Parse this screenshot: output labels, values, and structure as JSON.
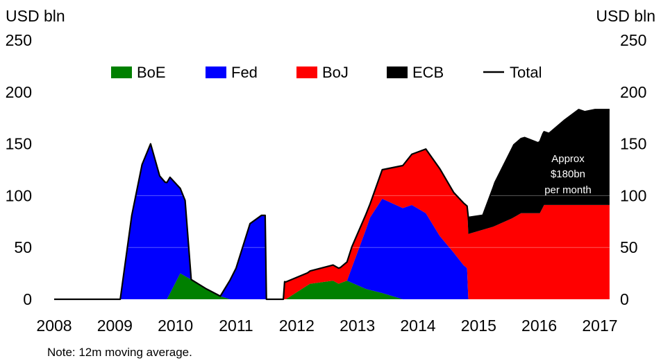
{
  "chart_data": {
    "type": "area",
    "stacked": true,
    "title": "",
    "ylabel_left": "USD bln",
    "ylabel_right": "USD bln",
    "ylim": [
      0,
      250
    ],
    "xlim": [
      2008,
      2017.16
    ],
    "y_ticks": [
      "0",
      "50",
      "100",
      "150",
      "200",
      "250"
    ],
    "x_ticks": [
      "2008",
      "2009",
      "2010",
      "2011",
      "2012",
      "2013",
      "2014",
      "2015",
      "2016",
      "2017"
    ],
    "legend_position": "top",
    "series": [
      {
        "name": "BoE",
        "color": "#008000",
        "points": [
          [
            2009.86,
            0
          ],
          [
            2010.08,
            25
          ],
          [
            2010.26,
            19
          ],
          [
            2010.51,
            10
          ],
          [
            2010.74,
            3
          ],
          [
            2010.9,
            0
          ],
          [
            2011.82,
            0
          ],
          [
            2012.22,
            15
          ],
          [
            2012.6,
            18
          ],
          [
            2012.69,
            15
          ],
          [
            2012.83,
            18
          ],
          [
            2013.14,
            10
          ],
          [
            2013.41,
            6
          ],
          [
            2013.75,
            0
          ]
        ]
      },
      {
        "name": "Fed",
        "color": "#0000ff",
        "points": [
          [
            2009.09,
            0
          ],
          [
            2009.28,
            81
          ],
          [
            2009.45,
            130
          ],
          [
            2009.59,
            150
          ],
          [
            2009.74,
            119
          ],
          [
            2009.83,
            113
          ],
          [
            2009.91,
            112
          ],
          [
            2010.08,
            82
          ],
          [
            2010.16,
            73
          ],
          [
            2010.26,
            0
          ],
          [
            2010.74,
            0
          ],
          [
            2011.0,
            30
          ],
          [
            2011.23,
            73
          ],
          [
            2011.42,
            81
          ],
          [
            2011.48,
            81
          ],
          [
            2011.5,
            0
          ],
          [
            2012.83,
            0
          ],
          [
            2013.21,
            70
          ],
          [
            2013.41,
            91
          ],
          [
            2013.75,
            88
          ],
          [
            2013.9,
            91
          ],
          [
            2014.13,
            83
          ],
          [
            2014.36,
            61
          ],
          [
            2014.59,
            45
          ],
          [
            2014.75,
            33
          ],
          [
            2014.81,
            30
          ],
          [
            2014.83,
            0
          ]
        ]
      },
      {
        "name": "BoJ",
        "color": "#ff0000",
        "points": [
          [
            2011.78,
            0
          ],
          [
            2011.8,
            17
          ],
          [
            2012.18,
            12
          ],
          [
            2012.6,
            15
          ],
          [
            2012.72,
            15
          ],
          [
            2012.83,
            18
          ],
          [
            2012.91,
            20
          ],
          [
            2013.21,
            13
          ],
          [
            2013.41,
            28
          ],
          [
            2013.75,
            41
          ],
          [
            2013.9,
            49
          ],
          [
            2014.13,
            62
          ],
          [
            2014.36,
            65
          ],
          [
            2014.59,
            58
          ],
          [
            2014.75,
            60
          ],
          [
            2014.81,
            60
          ],
          [
            2014.83,
            63
          ],
          [
            2015.24,
            70
          ],
          [
            2015.55,
            78
          ],
          [
            2015.7,
            83
          ],
          [
            2016.01,
            83
          ],
          [
            2016.08,
            91
          ],
          [
            2017.16,
            91
          ]
        ]
      },
      {
        "name": "ECB",
        "color": "#000000",
        "points": [
          [
            2014.81,
            0
          ],
          [
            2014.83,
            16
          ],
          [
            2015.07,
            14
          ],
          [
            2015.27,
            42
          ],
          [
            2015.58,
            70
          ],
          [
            2015.76,
            73
          ],
          [
            2015.98,
            68
          ],
          [
            2016.06,
            71
          ],
          [
            2016.16,
            69
          ],
          [
            2016.42,
            82
          ],
          [
            2016.65,
            92
          ],
          [
            2016.75,
            90
          ],
          [
            2016.92,
            92
          ],
          [
            2017.16,
            92
          ]
        ]
      }
    ],
    "total_line": {
      "name": "Total",
      "color": "#000000"
    },
    "annotation": [
      "Approx",
      "$180bn",
      "per month"
    ],
    "note": "Note: 12m moving average."
  }
}
